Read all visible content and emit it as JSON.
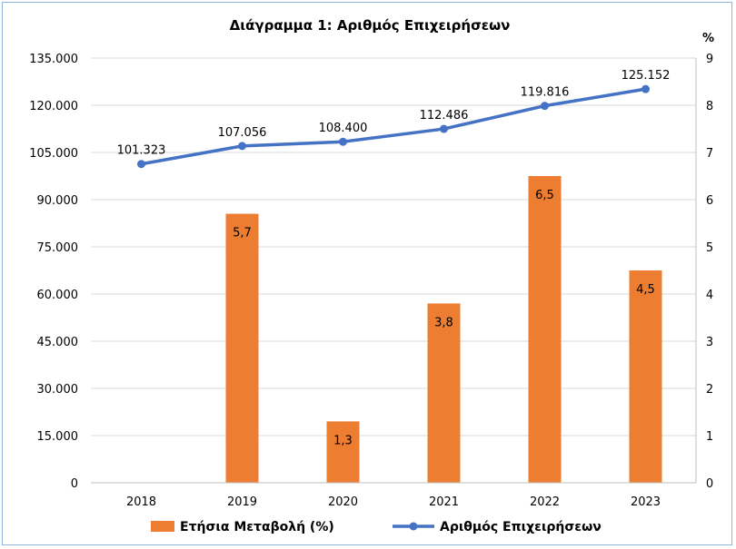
{
  "chart_data": {
    "type": "bar+line",
    "title": "Διάγραμμα 1: Αριθμός Επιχειρήσεων",
    "categories": [
      "2018",
      "2019",
      "2020",
      "2021",
      "2022",
      "2023"
    ],
    "y_left": {
      "ticks": [
        "0",
        "15.000",
        "30.000",
        "45.000",
        "60.000",
        "75.000",
        "90.000",
        "105.000",
        "120.000",
        "135.000"
      ],
      "range": [
        0,
        135000
      ]
    },
    "y_right": {
      "unit": "%",
      "ticks": [
        "0",
        "1",
        "2",
        "3",
        "4",
        "5",
        "6",
        "7",
        "8",
        "9"
      ],
      "range": [
        0,
        9
      ]
    },
    "series": [
      {
        "name": "Ετήσια Μεταβολή (%)",
        "type": "bar",
        "axis": "right",
        "color": "#ed7d31",
        "values": [
          null,
          5.7,
          1.3,
          3.8,
          6.5,
          4.5
        ],
        "labels": [
          "",
          "5,7",
          "1,3",
          "3,8",
          "6,5",
          "4,5"
        ]
      },
      {
        "name": "Αριθμός Επιχειρήσεων",
        "type": "line",
        "axis": "left",
        "color": "#4472c4",
        "values": [
          101323,
          107056,
          108400,
          112486,
          119816,
          125152
        ],
        "labels": [
          "101.323",
          "107.056",
          "108.400",
          "112.486",
          "119.816",
          "125.152"
        ]
      }
    ],
    "grid": "horizontal",
    "legend": "bottom"
  }
}
